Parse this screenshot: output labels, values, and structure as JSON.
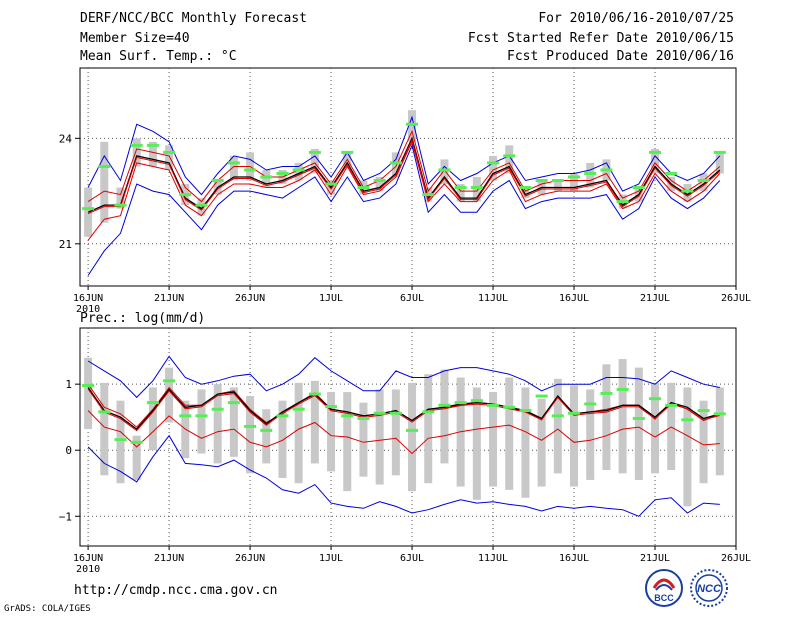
{
  "header": {
    "title": "DERF/NCC/BCC Monthly Forecast",
    "member_size": "Member Size=40",
    "variable": "Mean Surf. Temp.: °C",
    "period": "For 2010/06/16-2010/07/25",
    "start_date": "Fcst Started Refer Date 2010/06/15",
    "produced_date": "Fcst Produced Date 2010/06/16"
  },
  "footer": {
    "url": "http://cmdp.ncc.cma.gov.cn",
    "credit": "GrADS: COLA/IGES",
    "logo_bcc": "BCC",
    "logo_ncc": "NCC"
  },
  "colors": {
    "max_min": "#0000dd",
    "spread": "#dd0000",
    "mean": "#000000",
    "box": "#c8c8c8",
    "mark": "#55ee55",
    "grid": "#555555"
  },
  "chart_data": [
    {
      "type": "line",
      "title": "Mean Surf. Temp.: °C",
      "x": [
        16,
        17,
        18,
        19,
        20,
        21,
        22,
        23,
        24,
        25,
        26,
        27,
        28,
        29,
        30,
        31,
        32,
        33,
        34,
        35,
        36,
        37,
        38,
        39,
        40,
        41,
        42,
        43,
        44,
        45,
        46,
        47,
        48,
        49,
        50,
        51,
        52,
        53,
        54,
        55
      ],
      "xlim": [
        15.5,
        56
      ],
      "ylim": [
        19.8,
        26.0
      ],
      "yticks": [
        21,
        24
      ],
      "ytick_labels": [
        "21",
        "24"
      ],
      "xticks": [
        16,
        21,
        26,
        31,
        36,
        41,
        46,
        51,
        56
      ],
      "xtick_labels": [
        "16JUN",
        "21JUN",
        "26JUN",
        "1JUL",
        "6JUL",
        "11JUL",
        "16JUL",
        "21JUL",
        "26JUL"
      ],
      "year_label": "2010",
      "series": [
        {
          "name": "max",
          "values": [
            22.6,
            23.5,
            22.8,
            24.4,
            24.2,
            23.9,
            22.9,
            22.4,
            23.0,
            23.5,
            23.4,
            23.1,
            23.2,
            23.2,
            23.5,
            22.9,
            23.6,
            22.8,
            23.0,
            23.4,
            24.6,
            22.7,
            23.2,
            22.8,
            23.0,
            23.3,
            23.5,
            22.8,
            22.9,
            23.0,
            23.0,
            23.1,
            23.3,
            22.5,
            22.7,
            23.5,
            23.0,
            22.8,
            23.0,
            23.5
          ]
        },
        {
          "name": "spread_upper",
          "values": [
            22.2,
            22.5,
            22.4,
            23.7,
            23.6,
            23.5,
            22.6,
            22.2,
            22.8,
            23.2,
            23.2,
            22.9,
            22.9,
            23.1,
            23.3,
            22.7,
            23.4,
            22.6,
            22.8,
            23.2,
            24.2,
            22.5,
            23.1,
            22.5,
            22.5,
            23.1,
            23.3,
            22.5,
            22.7,
            22.8,
            22.8,
            22.8,
            23.0,
            22.3,
            22.5,
            23.3,
            22.8,
            22.5,
            22.8,
            23.2
          ]
        },
        {
          "name": "mean",
          "values": [
            21.9,
            22.1,
            22.1,
            23.5,
            23.4,
            23.3,
            22.3,
            22.0,
            22.6,
            22.9,
            22.9,
            22.7,
            22.8,
            23.0,
            23.2,
            22.6,
            23.3,
            22.5,
            22.6,
            23.0,
            24.0,
            22.3,
            22.9,
            22.3,
            22.3,
            23.0,
            23.2,
            22.4,
            22.6,
            22.6,
            22.6,
            22.7,
            22.8,
            22.1,
            22.4,
            23.2,
            22.7,
            22.4,
            22.7,
            23.1
          ]
        },
        {
          "name": "spread_lower",
          "values": [
            21.1,
            21.7,
            21.8,
            23.3,
            23.2,
            23.1,
            22.1,
            21.8,
            22.4,
            22.7,
            22.7,
            22.6,
            22.6,
            22.8,
            23.1,
            22.4,
            23.2,
            22.4,
            22.5,
            22.9,
            23.9,
            22.2,
            22.7,
            22.2,
            22.2,
            22.8,
            23.1,
            22.2,
            22.4,
            22.5,
            22.5,
            22.5,
            22.7,
            22.0,
            22.2,
            23.0,
            22.5,
            22.2,
            22.5,
            23.0
          ]
        },
        {
          "name": "min",
          "values": [
            20.1,
            20.8,
            21.3,
            22.7,
            22.5,
            22.4,
            21.9,
            21.4,
            22.1,
            22.5,
            22.5,
            22.4,
            22.3,
            22.6,
            22.9,
            22.2,
            22.9,
            22.2,
            22.3,
            22.7,
            23.8,
            21.9,
            22.4,
            21.9,
            21.9,
            22.5,
            22.8,
            22.0,
            22.2,
            22.3,
            22.3,
            22.3,
            22.4,
            21.7,
            22.0,
            22.9,
            22.3,
            22.0,
            22.3,
            22.8
          ]
        }
      ],
      "boxes": {
        "low": [
          21.2,
          21.6,
          22.0,
          23.2,
          23.2,
          23.1,
          22.1,
          21.8,
          22.4,
          22.8,
          22.8,
          22.6,
          22.7,
          22.8,
          23.0,
          22.4,
          23.2,
          22.4,
          22.5,
          22.9,
          23.9,
          22.2,
          22.7,
          22.2,
          22.2,
          22.8,
          23.0,
          22.3,
          22.4,
          22.5,
          22.5,
          22.6,
          22.8,
          22.0,
          22.2,
          23.0,
          22.5,
          22.2,
          22.5,
          23.0
        ],
        "high": [
          22.6,
          23.9,
          22.6,
          24.0,
          23.9,
          23.8,
          22.7,
          22.3,
          22.8,
          23.5,
          23.6,
          23.1,
          23.1,
          23.3,
          23.7,
          22.8,
          23.6,
          22.8,
          22.9,
          23.6,
          24.8,
          22.6,
          23.4,
          22.7,
          22.9,
          23.5,
          23.8,
          22.6,
          22.8,
          22.8,
          23.0,
          23.3,
          23.4,
          22.4,
          22.6,
          23.7,
          22.9,
          22.7,
          23.0,
          23.6
        ]
      },
      "marks": [
        22.0,
        23.2,
        22.1,
        23.8,
        23.8,
        23.6,
        22.4,
        22.1,
        22.8,
        23.3,
        23.1,
        22.9,
        23.0,
        23.1,
        23.6,
        22.7,
        23.6,
        22.6,
        22.8,
        23.3,
        24.4,
        22.4,
        23.1,
        22.6,
        22.6,
        23.3,
        23.5,
        22.6,
        22.8,
        22.8,
        22.9,
        23.0,
        23.1,
        22.2,
        22.6,
        23.6,
        23.0,
        22.5,
        22.8,
        23.6
      ]
    },
    {
      "type": "line",
      "title": "Prec.: log(mm/d)",
      "x": [
        16,
        17,
        18,
        19,
        20,
        21,
        22,
        23,
        24,
        25,
        26,
        27,
        28,
        29,
        30,
        31,
        32,
        33,
        34,
        35,
        36,
        37,
        38,
        39,
        40,
        41,
        42,
        43,
        44,
        45,
        46,
        47,
        48,
        49,
        50,
        51,
        52,
        53,
        54,
        55
      ],
      "xlim": [
        15.5,
        56
      ],
      "ylim": [
        -1.45,
        1.85
      ],
      "yticks": [
        -1,
        0,
        1
      ],
      "ytick_labels": [
        "−1",
        "0",
        "1"
      ],
      "xticks": [
        16,
        21,
        26,
        31,
        36,
        41,
        46,
        51,
        56
      ],
      "xtick_labels": [
        "16JUN",
        "21JUN",
        "26JUN",
        "1JUL",
        "6JUL",
        "11JUL",
        "16JUL",
        "21JUL",
        "26JUL"
      ],
      "year_label": "2010",
      "series": [
        {
          "name": "max",
          "values": [
            1.35,
            1.2,
            1.05,
            0.8,
            1.05,
            1.42,
            1.1,
            1.0,
            1.05,
            1.12,
            1.15,
            0.9,
            1.0,
            1.15,
            1.4,
            1.2,
            1.05,
            0.9,
            0.9,
            1.2,
            1.1,
            1.1,
            1.2,
            1.25,
            1.25,
            1.2,
            1.15,
            1.05,
            0.9,
            1.0,
            1.0,
            1.0,
            1.1,
            1.1,
            1.08,
            1.0,
            1.2,
            1.1,
            1.0,
            0.95
          ]
        },
        {
          "name": "upper",
          "values": [
            1.0,
            0.65,
            0.55,
            0.35,
            0.62,
            0.95,
            0.68,
            0.68,
            0.85,
            0.9,
            0.62,
            0.42,
            0.55,
            0.72,
            0.87,
            0.62,
            0.58,
            0.52,
            0.55,
            0.6,
            0.45,
            0.62,
            0.65,
            0.68,
            0.72,
            0.7,
            0.65,
            0.58,
            0.48,
            0.82,
            0.55,
            0.58,
            0.62,
            0.68,
            0.68,
            0.47,
            0.72,
            0.62,
            0.45,
            0.55
          ]
        },
        {
          "name": "mean",
          "values": [
            0.95,
            0.6,
            0.5,
            0.32,
            0.6,
            0.92,
            0.65,
            0.68,
            0.85,
            0.88,
            0.6,
            0.4,
            0.58,
            0.72,
            0.85,
            0.62,
            0.58,
            0.52,
            0.55,
            0.6,
            0.45,
            0.62,
            0.65,
            0.7,
            0.72,
            0.7,
            0.65,
            0.6,
            0.48,
            0.82,
            0.55,
            0.58,
            0.6,
            0.68,
            0.68,
            0.5,
            0.72,
            0.65,
            0.48,
            0.55
          ]
        },
        {
          "name": "lower",
          "values": [
            0.6,
            0.35,
            0.28,
            0.05,
            0.28,
            0.52,
            0.32,
            0.18,
            0.28,
            0.32,
            0.12,
            0.05,
            0.15,
            0.32,
            0.42,
            0.22,
            0.2,
            0.12,
            0.15,
            0.18,
            -0.05,
            0.18,
            0.22,
            0.28,
            0.32,
            0.35,
            0.38,
            0.28,
            0.15,
            0.32,
            0.12,
            0.15,
            0.22,
            0.32,
            0.35,
            0.2,
            0.35,
            0.22,
            0.08,
            0.1
          ]
        },
        {
          "name": "min",
          "values": [
            0.05,
            -0.2,
            -0.32,
            -0.48,
            -0.1,
            0.22,
            -0.2,
            -0.22,
            -0.25,
            -0.15,
            -0.3,
            -0.42,
            -0.6,
            -0.65,
            -0.52,
            -0.8,
            -0.85,
            -0.88,
            -0.78,
            -0.85,
            -0.95,
            -0.9,
            -0.82,
            -0.75,
            -0.8,
            -0.78,
            -0.82,
            -0.85,
            -0.92,
            -0.85,
            -0.88,
            -0.85,
            -0.88,
            -0.9,
            -1.0,
            -0.75,
            -0.72,
            -0.95,
            -0.8,
            -0.82
          ]
        }
      ],
      "boxes": {
        "low": [
          0.32,
          -0.38,
          -0.5,
          -0.45,
          0.0,
          0.42,
          -0.12,
          -0.05,
          -0.2,
          -0.1,
          -0.35,
          -0.2,
          -0.42,
          -0.5,
          -0.2,
          -0.32,
          -0.62,
          -0.4,
          -0.52,
          -0.38,
          -0.62,
          -0.5,
          -0.2,
          -0.55,
          -0.75,
          -0.55,
          -0.6,
          -0.72,
          -0.55,
          -0.35,
          -0.55,
          -0.45,
          -0.3,
          -0.35,
          -0.45,
          -0.35,
          -0.3,
          -0.85,
          -0.5,
          -0.38
        ],
        "high": [
          1.4,
          1.02,
          0.75,
          0.22,
          0.95,
          1.25,
          0.75,
          0.92,
          1.0,
          0.95,
          0.82,
          0.62,
          0.75,
          1.02,
          1.05,
          0.88,
          0.88,
          0.72,
          0.92,
          0.92,
          1.02,
          1.15,
          1.22,
          1.1,
          0.95,
          0.88,
          1.1,
          0.95,
          0.78,
          1.08,
          0.98,
          0.92,
          1.3,
          1.38,
          1.25,
          1.02,
          1.02,
          0.95,
          0.75,
          0.95
        ]
      },
      "marks": [
        0.98,
        0.58,
        0.16,
        0.12,
        0.72,
        1.05,
        0.52,
        0.52,
        0.62,
        0.72,
        0.36,
        0.3,
        0.52,
        0.62,
        0.85,
        0.66,
        0.52,
        0.48,
        0.56,
        0.56,
        0.3,
        0.58,
        0.68,
        0.72,
        0.75,
        0.68,
        0.65,
        0.6,
        0.82,
        0.52,
        0.56,
        0.7,
        0.86,
        0.92,
        0.48,
        0.78,
        0.68,
        0.46,
        0.6,
        0.55
      ]
    }
  ]
}
